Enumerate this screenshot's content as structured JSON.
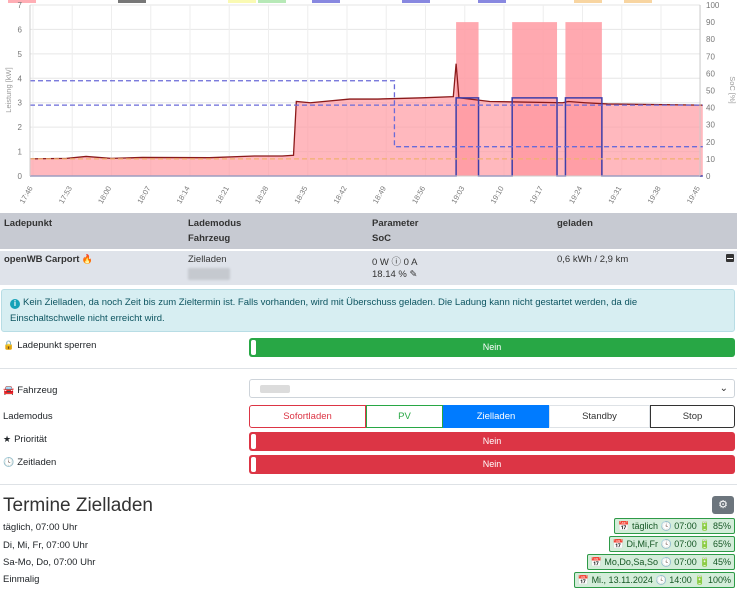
{
  "chart_data": {
    "type": "line",
    "x_ticks": [
      "17:46",
      "17:53",
      "18:00",
      "18:07",
      "18:14",
      "18:21",
      "18:28",
      "18:35",
      "18:42",
      "18:49",
      "18:56",
      "19:03",
      "19:10",
      "19:17",
      "19:24",
      "19:31",
      "19:38",
      "19:45"
    ],
    "y_left": {
      "label": "Leistung [kW]",
      "ticks": [
        "0",
        "1",
        "2",
        "3",
        "4",
        "5",
        "6",
        "7"
      ],
      "range": [
        0,
        7
      ]
    },
    "y_right": {
      "label": "SoC [%]",
      "ticks": [
        "0",
        "10",
        "20",
        "30",
        "40",
        "50",
        "60",
        "70",
        "80",
        "90",
        "100"
      ],
      "range": [
        0,
        100
      ]
    },
    "series": [
      {
        "key": "power",
        "color": "#ff9aa2",
        "line": "#8b1a1a",
        "x": [
          0,
          6.5,
          10,
          14.5,
          20,
          32,
          40,
          45,
          47,
          47.5,
          50,
          57,
          62,
          70,
          75.5,
          76,
          76.5,
          82,
          95,
          96,
          99,
          103,
          120
        ],
        "y": [
          0.7,
          0.72,
          0.8,
          0.72,
          0.76,
          0.75,
          0.82,
          0.82,
          0.85,
          3.05,
          3.0,
          3.15,
          3.15,
          3.2,
          3.25,
          4.6,
          3.2,
          3.05,
          3.0,
          3.05,
          3.0,
          2.95,
          2.9
        ]
      },
      {
        "key": "charge_blocks",
        "color": "#ff9aa2",
        "x": [
          [
            76,
            80
          ],
          [
            86,
            94
          ],
          [
            95.5,
            102
          ]
        ],
        "y": 6.3
      },
      {
        "key": "orange_dashed",
        "color": "#f0b070",
        "y": 0.7
      },
      {
        "key": "blue_dashed",
        "color": "#6a6ad8",
        "x": [
          0,
          65,
          65,
          120
        ],
        "y": [
          3.9,
          3.9,
          1.2,
          1.2
        ]
      },
      {
        "key": "violet_dashed",
        "color": "#6a6ad8",
        "x": [
          0,
          120
        ],
        "y": [
          2.9,
          2.9
        ]
      },
      {
        "key": "soc_steps",
        "color": "#3e3ea8",
        "x": [
          0,
          76,
          76,
          80,
          80,
          86,
          86,
          94,
          94,
          95.5,
          95.5,
          102,
          102,
          120
        ],
        "y": [
          0,
          0,
          3.2,
          3.2,
          0,
          0,
          3.2,
          3.2,
          0,
          0,
          3.2,
          3.2,
          0,
          0
        ]
      }
    ],
    "legend_colors": [
      "#ff9aa2",
      "#555555",
      "#f9f9a0",
      "#a5e3a5",
      "#6a6ad8",
      "#6a6ad8",
      "#6a6ad8",
      "#f6ca8a",
      "#f6ca8a"
    ]
  },
  "table": {
    "headers": {
      "col1": "Ladepunkt",
      "col2a": "Lademodus",
      "col2b": "Fahrzeug",
      "col3a": "Parameter",
      "col3b": "SoC",
      "col4": "geladen"
    },
    "row": {
      "name": "openWB Carport",
      "mode": "Zielladen",
      "param": "0 W  ⓘ  0 A",
      "soc": "18.14 %",
      "charged": "0,6 kWh / 2,9 km"
    }
  },
  "alert": {
    "text1": "Kein Zielladen, da noch Zeit bis zum Zieltermin ist. Falls vorhanden, wird mit Überschuss geladen. Die Ladung kann nicht gestartet werden, da die",
    "text2": "Einschaltschwelle nicht erreicht wird."
  },
  "controls": {
    "lock_label": "Ladepunkt sperren",
    "lock_value": "Nein",
    "vehicle_label": "Fahrzeug",
    "mode_label": "Lademodus",
    "modes": [
      "Sofortladen",
      "PV",
      "Zielladen",
      "Standby",
      "Stop"
    ],
    "priority_label": "Priorität",
    "priority_value": "Nein",
    "timed_label": "Zeitladen",
    "timed_value": "Nein"
  },
  "schedule": {
    "title": "Termine Zielladen",
    "items": [
      {
        "text": "täglich, 07:00 Uhr",
        "badge_day": "täglich",
        "badge_time": "07:00",
        "badge_soc": "85%"
      },
      {
        "text": "Di, Mi, Fr, 07:00 Uhr",
        "badge_day": "Di,Mi,Fr",
        "badge_time": "07:00",
        "badge_soc": "65%"
      },
      {
        "text": "Sa-Mo, Do, 07:00 Uhr",
        "badge_day": "Mo,Do,Sa,So",
        "badge_time": "07:00",
        "badge_soc": "45%"
      },
      {
        "text": "Einmalig",
        "badge_day": "Mi., 13.11.2024",
        "badge_time": "14:00",
        "badge_soc": "100%"
      }
    ]
  }
}
